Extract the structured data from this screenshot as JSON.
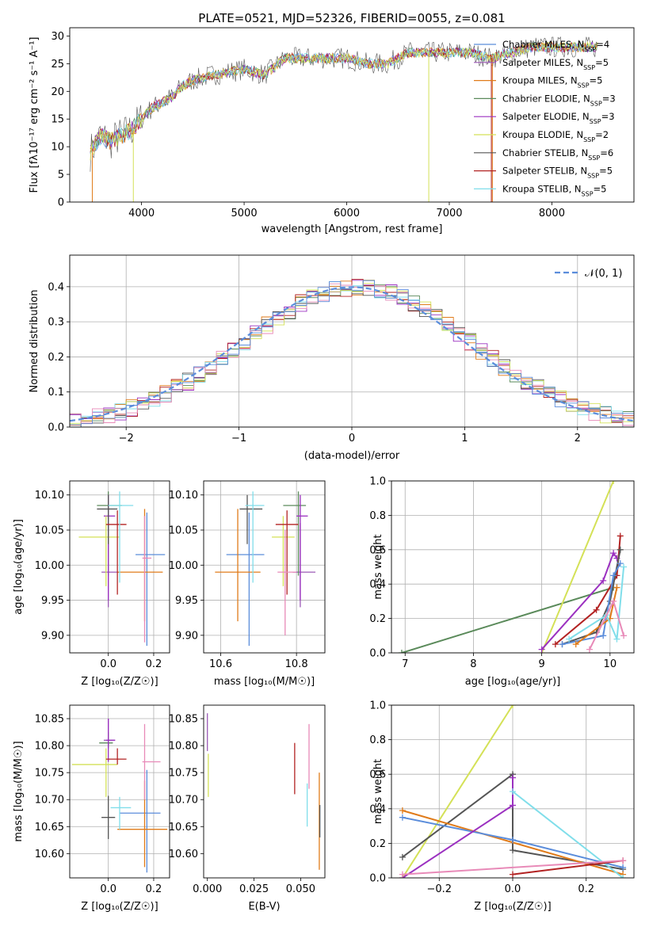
{
  "colors": {
    "chabrier_miles": "#5b8ddb",
    "salpeter_miles": "#9b59b6",
    "kroupa_miles": "#e07b1a",
    "chabrier_elodie": "#5a8a5a",
    "salpeter_elodie": "#9b30c0",
    "kroupa_elodie": "#d4e157",
    "chabrier_stelib": "#555555",
    "salpeter_stelib": "#b22222",
    "kroupa_stelib": "#80deea",
    "pink": "#e88ab8",
    "grid": "#b0b0b0"
  },
  "chart_data": [
    {
      "id": "spectrum",
      "type": "line",
      "title": "PLATE=0521, MJD=52326, FIBERID=0055, z=0.081",
      "xlabel": "wavelength [Angstrom, rest frame]",
      "ylabel": "Flux [fλ10⁻¹⁷ erg cm⁻² s⁻¹ A⁻¹]",
      "xlim": [
        3300,
        8800
      ],
      "ylim": [
        0,
        31.5
      ],
      "xticks": [
        4000,
        5000,
        6000,
        7000,
        8000
      ],
      "yticks": [
        0,
        5,
        10,
        15,
        20,
        25,
        30
      ],
      "grid": false,
      "legend_position": "top-right",
      "spectrum_envelope": [
        [
          3500,
          9
        ],
        [
          3600,
          12
        ],
        [
          3700,
          11
        ],
        [
          3800,
          12
        ],
        [
          3900,
          13
        ],
        [
          4000,
          15
        ],
        [
          4100,
          17
        ],
        [
          4200,
          18
        ],
        [
          4300,
          19
        ],
        [
          4400,
          21
        ],
        [
          4500,
          22
        ],
        [
          4700,
          23
        ],
        [
          5000,
          24
        ],
        [
          5200,
          23
        ],
        [
          5400,
          26
        ],
        [
          5600,
          26
        ],
        [
          5800,
          26
        ],
        [
          6000,
          26
        ],
        [
          6200,
          25
        ],
        [
          6400,
          25
        ],
        [
          6600,
          27
        ],
        [
          6800,
          27
        ],
        [
          7000,
          27
        ],
        [
          7200,
          27
        ],
        [
          7400,
          26
        ],
        [
          7600,
          27
        ],
        [
          7800,
          28
        ],
        [
          8000,
          28
        ],
        [
          8200,
          28
        ],
        [
          8400,
          28
        ]
      ],
      "legend": [
        {
          "label": "Chabrier MILES, N",
          "sub": "SSP",
          "tail": "=4",
          "color": "#5b8ddb"
        },
        {
          "label": "Salpeter MILES, N",
          "sub": "SSP",
          "tail": "=5",
          "color": "#9b59b6"
        },
        {
          "label": "Kroupa MILES, N",
          "sub": "SSP",
          "tail": "=5",
          "color": "#e07b1a"
        },
        {
          "label": "Chabrier ELODIE, N",
          "sub": "SSP",
          "tail": "=3",
          "color": "#5a8a5a"
        },
        {
          "label": "Salpeter ELODIE, N",
          "sub": "SSP",
          "tail": "=3",
          "color": "#9b30c0"
        },
        {
          "label": "Kroupa ELODIE, N",
          "sub": "SSP",
          "tail": "=2",
          "color": "#d4e157"
        },
        {
          "label": "Chabrier STELIB, N",
          "sub": "SSP",
          "tail": "=6",
          "color": "#555555"
        },
        {
          "label": "Salpeter STELIB, N",
          "sub": "SSP",
          "tail": "=5",
          "color": "#b22222"
        },
        {
          "label": "Kroupa STELIB, N",
          "sub": "SSP",
          "tail": "=5",
          "color": "#80deea"
        }
      ]
    },
    {
      "id": "residuals",
      "type": "step",
      "xlabel": "(data-model)/error",
      "ylabel": "Normed distribution",
      "xlim": [
        -2.5,
        2.5
      ],
      "ylim": [
        0,
        0.49
      ],
      "xticks": [
        -2,
        -1,
        0,
        1,
        2
      ],
      "yticks": [
        0.0,
        0.1,
        0.2,
        0.3,
        0.4
      ],
      "grid": true,
      "legend_position": "top-right",
      "legend_label": "𝒩(0, 1)",
      "normal_curve_color": "#5b8ddb"
    },
    {
      "id": "age_vs_Z",
      "type": "errorbar",
      "xlabel": "Z [log₁₀(Z/Z☉)]",
      "ylabel": "age  [log₁₀(age/yr)]",
      "xlim": [
        -0.17,
        0.27
      ],
      "ylim": [
        9.875,
        10.12
      ],
      "xticks": [
        0.0,
        0.2
      ],
      "yticks": [
        9.9,
        9.95,
        10.0,
        10.05,
        10.1
      ],
      "grid": true,
      "points": [
        {
          "x": 0.17,
          "y": 10.015,
          "xerr": [
            0.05,
            0.08
          ],
          "yerr": [
            0.13,
            0.06
          ],
          "color": "#5b8ddb"
        },
        {
          "x": 0.0,
          "y": 9.99,
          "xerr": [
            0.03,
            0.05
          ],
          "yerr": [
            0.05,
            0.07
          ],
          "color": "#9b59b6"
        },
        {
          "x": 0.16,
          "y": 9.99,
          "xerr": [
            0.12,
            0.08
          ],
          "yerr": [
            0.07,
            0.09
          ],
          "color": "#e07b1a"
        },
        {
          "x": 0.0,
          "y": 10.085,
          "xerr": [
            0.05,
            0.06
          ],
          "yerr": [
            0.1,
            0.02
          ],
          "color": "#5a8a5a"
        },
        {
          "x": 0.0,
          "y": 10.07,
          "xerr": [
            0.02,
            0.03
          ],
          "yerr": [
            0.12,
            0.03
          ],
          "color": "#9b30c0"
        },
        {
          "x": -0.01,
          "y": 10.04,
          "xerr": [
            0.12,
            0.06
          ],
          "yerr": [
            0.07,
            0.03
          ],
          "color": "#d4e157"
        },
        {
          "x": 0.0,
          "y": 10.08,
          "xerr": [
            0.05,
            0.04
          ],
          "yerr": [
            0.05,
            0.02
          ],
          "color": "#555555"
        },
        {
          "x": 0.04,
          "y": 10.058,
          "xerr": [
            0.05,
            0.04
          ],
          "yerr": [
            0.1,
            0.02
          ],
          "color": "#b22222"
        },
        {
          "x": 0.05,
          "y": 10.085,
          "xerr": [
            0.05,
            0.06
          ],
          "yerr": [
            0.11,
            0.02
          ],
          "color": "#80deea"
        },
        {
          "x": 0.16,
          "y": 10.01,
          "xerr": [
            0.01,
            0.03
          ],
          "yerr": [
            0.12,
            0.06
          ],
          "color": "#e88ab8"
        }
      ]
    },
    {
      "id": "age_vs_mass",
      "type": "errorbar",
      "xlabel": "mass [log₁₀(M/M☉)]",
      "ylabel": "",
      "xlim": [
        10.555,
        10.875
      ],
      "ylim": [
        9.875,
        10.12
      ],
      "xticks": [
        10.6,
        10.8
      ],
      "yticks": [
        9.9,
        9.95,
        10.0,
        10.05,
        10.1
      ],
      "grid": true,
      "points": [
        {
          "x": 10.675,
          "y": 10.015,
          "xerr": [
            0.06,
            0.04
          ],
          "yerr": [
            0.13,
            0.06
          ],
          "color": "#5b8ddb"
        },
        {
          "x": 10.81,
          "y": 9.99,
          "xerr": [
            0.02,
            0.04
          ],
          "yerr": [
            0.05,
            0.07
          ],
          "color": "#9b59b6"
        },
        {
          "x": 10.645,
          "y": 9.99,
          "xerr": [
            0.06,
            0.06
          ],
          "yerr": [
            0.07,
            0.09
          ],
          "color": "#e07b1a"
        },
        {
          "x": 10.805,
          "y": 10.085,
          "xerr": [
            0.04,
            0.02
          ],
          "yerr": [
            0.1,
            0.02
          ],
          "color": "#5a8a5a"
        },
        {
          "x": 10.81,
          "y": 10.07,
          "xerr": [
            0.01,
            0.02
          ],
          "yerr": [
            0.12,
            0.03
          ],
          "color": "#9b30c0"
        },
        {
          "x": 10.765,
          "y": 10.04,
          "xerr": [
            0.03,
            0.03
          ],
          "yerr": [
            0.07,
            0.03
          ],
          "color": "#d4e157"
        },
        {
          "x": 10.67,
          "y": 10.08,
          "xerr": [
            0.02,
            0.04
          ],
          "yerr": [
            0.05,
            0.02
          ],
          "color": "#555555"
        },
        {
          "x": 10.775,
          "y": 10.058,
          "xerr": [
            0.03,
            0.03
          ],
          "yerr": [
            0.1,
            0.02
          ],
          "color": "#b22222"
        },
        {
          "x": 10.685,
          "y": 10.085,
          "xerr": [
            0.02,
            0.03
          ],
          "yerr": [
            0.11,
            0.02
          ],
          "color": "#80deea"
        },
        {
          "x": 10.77,
          "y": 9.99,
          "xerr": [
            0.02,
            0.03
          ],
          "yerr": [
            0.09,
            0.06
          ],
          "color": "#e88ab8"
        }
      ]
    },
    {
      "id": "weight_vs_age",
      "type": "line",
      "xlabel": "age  [log₁₀(age/yr)]",
      "ylabel": "mass weight",
      "xlim": [
        6.8,
        10.35
      ],
      "ylim": [
        0.0,
        1.0
      ],
      "xticks": [
        7,
        8,
        9,
        10
      ],
      "yticks": [
        0.0,
        0.2,
        0.4,
        0.6,
        0.8,
        1.0
      ],
      "grid": true,
      "series": [
        {
          "color": "#5a8a5a",
          "x": [
            6.95,
            10.05
          ],
          "y": [
            0.0,
            0.38
          ]
        },
        {
          "color": "#d4e157",
          "x": [
            9.0,
            10.05
          ],
          "y": [
            0.0,
            1.0
          ]
        },
        {
          "color": "#9b30c0",
          "x": [
            9.0,
            9.9,
            10.05,
            10.1
          ],
          "y": [
            0.02,
            0.42,
            0.58,
            0.55
          ]
        },
        {
          "color": "#b22222",
          "x": [
            9.2,
            9.8,
            10.1,
            10.15
          ],
          "y": [
            0.05,
            0.25,
            0.45,
            0.68
          ]
        },
        {
          "color": "#555555",
          "x": [
            9.3,
            9.8,
            10.0,
            10.15
          ],
          "y": [
            0.05,
            0.12,
            0.3,
            0.6
          ]
        },
        {
          "color": "#5b8ddb",
          "x": [
            9.3,
            9.9,
            10.05,
            10.15
          ],
          "y": [
            0.05,
            0.1,
            0.45,
            0.52
          ]
        },
        {
          "color": "#e07b1a",
          "x": [
            9.5,
            10.0,
            10.1
          ],
          "y": [
            0.05,
            0.2,
            0.38
          ]
        },
        {
          "color": "#80deea",
          "x": [
            9.4,
            9.95,
            10.1,
            10.2
          ],
          "y": [
            0.08,
            0.22,
            0.08,
            0.5
          ]
        },
        {
          "color": "#e88ab8",
          "x": [
            9.7,
            10.05,
            10.2
          ],
          "y": [
            0.02,
            0.3,
            0.1
          ]
        }
      ]
    },
    {
      "id": "mass_vs_Z",
      "type": "errorbar",
      "xlabel": "Z [log₁₀(Z/Z☉)]",
      "ylabel": "mass [log₁₀(M/M☉)]",
      "xlim": [
        -0.17,
        0.27
      ],
      "ylim": [
        10.555,
        10.875
      ],
      "xticks": [
        0.0,
        0.2
      ],
      "yticks": [
        10.6,
        10.65,
        10.7,
        10.75,
        10.8,
        10.85
      ],
      "grid": true,
      "points": [
        {
          "x": 0.17,
          "y": 10.675,
          "xerr": [
            0.12,
            0.06
          ],
          "yerr": [
            0.11,
            0.08
          ],
          "color": "#5b8ddb"
        },
        {
          "x": 0.0,
          "y": 10.81,
          "xerr": [
            0.02,
            0.03
          ],
          "yerr": [
            0.01,
            0.04
          ],
          "color": "#9b59b6"
        },
        {
          "x": 0.16,
          "y": 10.645,
          "xerr": [
            0.12,
            0.1
          ],
          "yerr": [
            0.07,
            0.09
          ],
          "color": "#e07b1a"
        },
        {
          "x": 0.0,
          "y": 10.805,
          "xerr": [
            0.04,
            0.02
          ],
          "yerr": [
            0.01,
            0.02
          ],
          "color": "#5a8a5a"
        },
        {
          "x": 0.0,
          "y": 10.81,
          "xerr": [
            0.01,
            0.03
          ],
          "yerr": [
            0.04,
            0.04
          ],
          "color": "#9b30c0"
        },
        {
          "x": -0.01,
          "y": 10.765,
          "xerr": [
            0.15,
            0.05
          ],
          "yerr": [
            0.06,
            0.03
          ],
          "color": "#d4e157"
        },
        {
          "x": 0.0,
          "y": 10.667,
          "xerr": [
            0.03,
            0.03
          ],
          "yerr": [
            0.04,
            0.04
          ],
          "color": "#555555"
        },
        {
          "x": 0.04,
          "y": 10.775,
          "xerr": [
            0.05,
            0.04
          ],
          "yerr": [
            0.01,
            0.02
          ],
          "color": "#b22222"
        },
        {
          "x": 0.05,
          "y": 10.685,
          "xerr": [
            0.04,
            0.05
          ],
          "yerr": [
            0.04,
            0.02
          ],
          "color": "#80deea"
        },
        {
          "x": 0.16,
          "y": 10.77,
          "xerr": [
            0.01,
            0.07
          ],
          "yerr": [
            0.07,
            0.07
          ],
          "color": "#e88ab8"
        }
      ]
    },
    {
      "id": "mass_vs_ebv",
      "type": "errorbar",
      "xlabel": "E(B-V)",
      "ylabel": "",
      "xlim": [
        -0.002,
        0.063
      ],
      "ylim": [
        10.555,
        10.875
      ],
      "xticks": [
        0.0,
        0.025,
        0.05
      ],
      "yticks": [
        10.6,
        10.65,
        10.7,
        10.75,
        10.8,
        10.85
      ],
      "grid": false,
      "points": [
        {
          "x": 0.0,
          "y": 10.81,
          "xerr": [
            0,
            0
          ],
          "yerr": [
            0.02,
            0.05
          ],
          "color": "#9b59b6"
        },
        {
          "x": 0.0005,
          "y": 10.765,
          "xerr": [
            0,
            0
          ],
          "yerr": [
            0.06,
            0.02
          ],
          "color": "#d4e157"
        },
        {
          "x": 0.0468,
          "y": 10.76,
          "xerr": [
            0,
            0
          ],
          "yerr": [
            0.05,
            0.045
          ],
          "color": "#b22222"
        },
        {
          "x": 0.0535,
          "y": 10.7,
          "xerr": [
            0,
            0
          ],
          "yerr": [
            0.05,
            0.03
          ],
          "color": "#80deea"
        },
        {
          "x": 0.0545,
          "y": 10.77,
          "xerr": [
            0,
            0
          ],
          "yerr": [
            0.05,
            0.07
          ],
          "color": "#e88ab8"
        },
        {
          "x": 0.06,
          "y": 10.67,
          "xerr": [
            0,
            0
          ],
          "yerr": [
            0.1,
            0.08
          ],
          "color": "#e07b1a"
        },
        {
          "x": 0.0603,
          "y": 10.66,
          "xerr": [
            0,
            0
          ],
          "yerr": [
            0.03,
            0.03
          ],
          "color": "#555555"
        }
      ]
    },
    {
      "id": "weight_vs_Z",
      "type": "line",
      "xlabel": "Z [log₁₀(Z/Z☉)]",
      "ylabel": "mass weight",
      "xlim": [
        -0.33,
        0.33
      ],
      "ylim": [
        0.0,
        1.0
      ],
      "xticks": [
        -0.2,
        0.0,
        0.2
      ],
      "yticks": [
        0.0,
        0.2,
        0.4,
        0.6,
        0.8,
        1.0
      ],
      "grid": true,
      "series": [
        {
          "color": "#d4e157",
          "x": [
            -0.3,
            0.0
          ],
          "y": [
            0.0,
            1.0
          ]
        },
        {
          "color": "#555555",
          "x": [
            -0.3,
            0.0,
            0.0,
            0.3
          ],
          "y": [
            0.12,
            0.6,
            0.16,
            0.05
          ]
        },
        {
          "color": "#e07b1a",
          "x": [
            -0.3,
            0.3
          ],
          "y": [
            0.39,
            0.02
          ]
        },
        {
          "color": "#5b8ddb",
          "x": [
            -0.3,
            0.0,
            0.3
          ],
          "y": [
            0.35,
            0.22,
            0.06
          ]
        },
        {
          "color": "#9b30c0",
          "x": [
            -0.3,
            0.0,
            0.0
          ],
          "y": [
            0.0,
            0.42,
            0.58
          ]
        },
        {
          "color": "#80deea",
          "x": [
            0.0,
            0.3
          ],
          "y": [
            0.5,
            0.0
          ]
        },
        {
          "color": "#b22222",
          "x": [
            0.0,
            0.3
          ],
          "y": [
            0.02,
            0.1
          ]
        },
        {
          "color": "#e88ab8",
          "x": [
            -0.3,
            0.3
          ],
          "y": [
            0.02,
            0.1
          ]
        }
      ]
    }
  ]
}
